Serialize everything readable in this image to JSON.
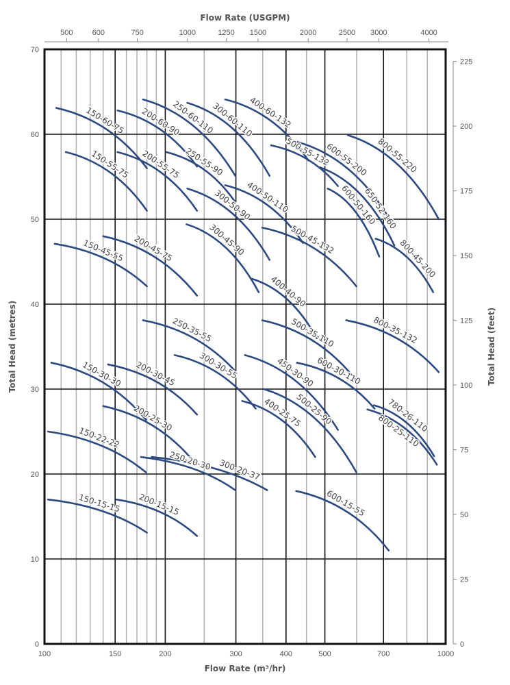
{
  "chart_data": {
    "type": "line",
    "xlabel": "Flow Rate (m³/hr)",
    "x2label": "Flow Rate (USGPM)",
    "ylabel": "Total Head (metres)",
    "y2label": "Total Head (feet)",
    "xscale": "log",
    "xlim": [
      100,
      1000
    ],
    "ylim": [
      0,
      70
    ],
    "y2lim": [
      0,
      229.7
    ],
    "x_ticks": [
      100,
      150,
      200,
      300,
      400,
      500,
      700,
      1000
    ],
    "x_minor_grid": [
      110,
      120,
      130,
      140,
      160,
      170,
      180,
      190,
      250,
      350,
      450,
      600,
      800,
      900
    ],
    "x2_ticks": [
      500,
      600,
      750,
      1000,
      1250,
      1500,
      2000,
      2500,
      3000,
      4000
    ],
    "y_ticks": [
      0,
      10,
      20,
      30,
      40,
      50,
      60,
      70
    ],
    "y2_ticks": [
      0,
      25,
      50,
      75,
      100,
      125,
      150,
      175,
      200,
      225
    ],
    "grid": true,
    "colors": {
      "curve": "#2d4a80",
      "major_grid": "#111111",
      "minor_grid": "#b0b0b0",
      "text": "#555555"
    },
    "series": [
      {
        "name": "150-60-75",
        "x": [
          107,
          180
        ],
        "y": [
          63.1,
          56.0
        ]
      },
      {
        "name": "150-55-75",
        "x": [
          113,
          180
        ],
        "y": [
          57.9,
          51.0
        ]
      },
      {
        "name": "150-45-55",
        "x": [
          106,
          180
        ],
        "y": [
          47.1,
          42.1
        ]
      },
      {
        "name": "200-60-90",
        "x": [
          152,
          240
        ],
        "y": [
          62.8,
          56.2
        ]
      },
      {
        "name": "200-55-75",
        "x": [
          152,
          240
        ],
        "y": [
          57.9,
          51.0
        ]
      },
      {
        "name": "200-45-75",
        "x": [
          140,
          240
        ],
        "y": [
          48.0,
          41.0
        ]
      },
      {
        "name": "250-60-110",
        "x": [
          176,
          299
        ],
        "y": [
          64.1,
          55.1
        ]
      },
      {
        "name": "250-55-90",
        "x": [
          201,
          299
        ],
        "y": [
          57.9,
          52.0
        ]
      },
      {
        "name": "300-60-110",
        "x": [
          227,
          364
        ],
        "y": [
          63.7,
          55.1
        ]
      },
      {
        "name": "300-50-90",
        "x": [
          227,
          364
        ],
        "y": [
          53.6,
          45.2
        ]
      },
      {
        "name": "300-45-90",
        "x": [
          226,
          342
        ],
        "y": [
          49.4,
          41.4
        ]
      },
      {
        "name": "400-60-132",
        "x": [
          282,
          455
        ],
        "y": [
          64.1,
          56.9
        ]
      },
      {
        "name": "500-55-132",
        "x": [
          367,
          539
        ],
        "y": [
          58.7,
          53.9
        ]
      },
      {
        "name": "600-55-200",
        "x": [
          426,
          721
        ],
        "y": [
          59.1,
          50.2
        ]
      },
      {
        "name": "650-52-160",
        "x": [
          486,
          745
        ],
        "y": [
          56.1,
          46.9
        ]
      },
      {
        "name": "600-50-160",
        "x": [
          508,
          683
        ],
        "y": [
          53.6,
          45.6
        ]
      },
      {
        "name": "800-55-220",
        "x": [
          570,
          961
        ],
        "y": [
          59.9,
          50.0
        ]
      },
      {
        "name": "800-45-200",
        "x": [
          669,
          931
        ],
        "y": [
          47.7,
          41.4
        ]
      },
      {
        "name": "400-50-110",
        "x": [
          282,
          441
        ],
        "y": [
          54.0,
          47.2
        ]
      },
      {
        "name": "500-45-132",
        "x": [
          349,
          599
        ],
        "y": [
          49.0,
          42.1
        ]
      },
      {
        "name": "400-40-90",
        "x": [
          328,
          477
        ],
        "y": [
          43.0,
          36.0
        ]
      },
      {
        "name": "500-35-110",
        "x": [
          349,
          599
        ],
        "y": [
          38.1,
          31.0
        ]
      },
      {
        "name": "800-35-132",
        "x": [
          565,
          961
        ],
        "y": [
          38.1,
          32.0
        ]
      },
      {
        "name": "250-35-55",
        "x": [
          176,
          299
        ],
        "y": [
          38.1,
          32.1
        ]
      },
      {
        "name": "300-30-55",
        "x": [
          211,
          336
        ],
        "y": [
          34.0,
          27.7
        ]
      },
      {
        "name": "450-30-90",
        "x": [
          316,
          539
        ],
        "y": [
          34.0,
          25.2
        ]
      },
      {
        "name": "600-30-110",
        "x": [
          426,
          665
        ],
        "y": [
          33.1,
          27.7
        ]
      },
      {
        "name": "780-26-110",
        "x": [
          662,
          936
        ],
        "y": [
          28.1,
          22.1
        ]
      },
      {
        "name": "800-25-110",
        "x": [
          638,
          951
        ],
        "y": [
          27.6,
          21.1
        ]
      },
      {
        "name": "400-25-75",
        "x": [
          311,
          473
        ],
        "y": [
          28.6,
          22.0
        ]
      },
      {
        "name": "500-25-90",
        "x": [
          352,
          599
        ],
        "y": [
          30.0,
          20.2
        ]
      },
      {
        "name": "150-30-30",
        "x": [
          104,
          179
        ],
        "y": [
          33.1,
          26.4
        ]
      },
      {
        "name": "200-30-45",
        "x": [
          144,
          240
        ],
        "y": [
          32.9,
          27.0
        ]
      },
      {
        "name": "200-25-30",
        "x": [
          140,
          239
        ],
        "y": [
          28.0,
          21.1
        ]
      },
      {
        "name": "150-22-22",
        "x": [
          102,
          179
        ],
        "y": [
          25.0,
          20.2
        ]
      },
      {
        "name": "250-20-30",
        "x": [
          174,
          299
        ],
        "y": [
          22.0,
          18.1
        ]
      },
      {
        "name": "300-20-37",
        "x": [
          185,
          359
        ],
        "y": [
          22.0,
          18.1
        ]
      },
      {
        "name": "150-15-15",
        "x": [
          102,
          180
        ],
        "y": [
          17.0,
          13.1
        ]
      },
      {
        "name": "200-15-15",
        "x": [
          151,
          240
        ],
        "y": [
          17.0,
          12.7
        ]
      },
      {
        "name": "600-15-55",
        "x": [
          424,
          721
        ],
        "y": [
          18.0,
          11.0
        ]
      }
    ]
  }
}
